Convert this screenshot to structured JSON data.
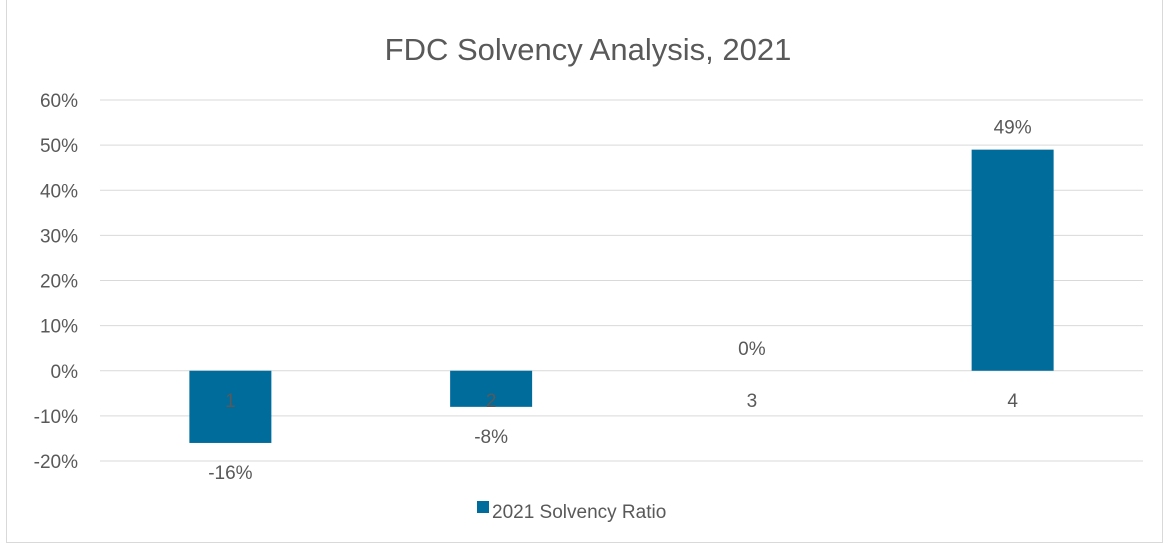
{
  "chart_data": {
    "type": "bar",
    "title": "FDC Solvency Analysis, 2021",
    "xlabel": "",
    "ylabel": "",
    "categories": [
      "1",
      "2",
      "3",
      "4"
    ],
    "series": [
      {
        "name": "2021 Solvency Ratio",
        "values": [
          -16,
          -8,
          0,
          49
        ],
        "color": "#006c9c"
      }
    ],
    "data_labels": [
      "-16%",
      "-8%",
      "0%",
      "49%"
    ],
    "y_ticks": [
      "60%",
      "50%",
      "40%",
      "30%",
      "20%",
      "10%",
      "0%",
      "-10%",
      "-20%"
    ],
    "ylim": [
      -20,
      60
    ],
    "grid": true,
    "legend_position": "bottom"
  }
}
